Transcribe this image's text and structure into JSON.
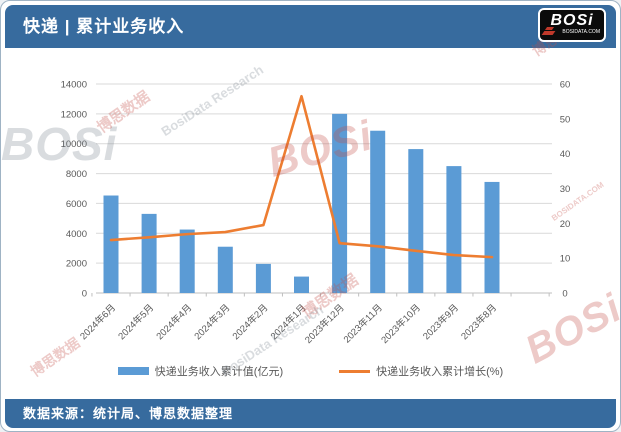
{
  "header": {
    "title": "快递 | 累计业务收入"
  },
  "logo": {
    "text": "BOSi",
    "domain": "BOSIDATA.COM"
  },
  "footer": {
    "source": "数据来源：统计局、博思数据整理"
  },
  "legend": {
    "bar_label": "快递业务收入累计值(亿元)",
    "line_label": "快递业务收入累计增长(%)"
  },
  "colors": {
    "header_bg": "#376B9E",
    "bar": "#5B9BD5",
    "line": "#ED7D31",
    "grid": "#D9D9D9",
    "axis_line": "#BFBFBF",
    "axis_text": "#595959",
    "watermark_red": "#C54E48",
    "logo_bg": "#0B0B0B",
    "logo_accent": "#C0392B"
  },
  "watermarks": {
    "brand": "BOSi",
    "brand_cn": "博思数据",
    "research": "BosiData Research",
    "domain": "BOSIDATA.COM"
  },
  "chart_data": {
    "type": "bar+line combo",
    "categories": [
      "2024年6月",
      "2024年5月",
      "2024年4月",
      "2024年3月",
      "2024年2月",
      "2024年1月",
      "2023年12月",
      "2023年11月",
      "2023年10月",
      "2023年9月",
      "2023年8月"
    ],
    "series": [
      {
        "name": "快递业务收入累计值(亿元)",
        "type": "bar",
        "axis": "left",
        "values": [
          6530,
          5300,
          4250,
          3100,
          1950,
          1100,
          12000,
          10870,
          9640,
          8500,
          7440
        ]
      },
      {
        "name": "快递业务收入累计增长(%)",
        "type": "line",
        "axis": "right",
        "values": [
          15.2,
          16.0,
          16.9,
          17.5,
          19.5,
          56.5,
          14.3,
          13.4,
          12.1,
          10.9,
          10.3
        ]
      }
    ],
    "left_axis": {
      "min": 0,
      "max": 14000,
      "step": 2000
    },
    "right_axis": {
      "min": 0,
      "max": 60,
      "step": 10
    },
    "grid": true,
    "legend_position": "bottom",
    "x_label_rotation": -45
  }
}
